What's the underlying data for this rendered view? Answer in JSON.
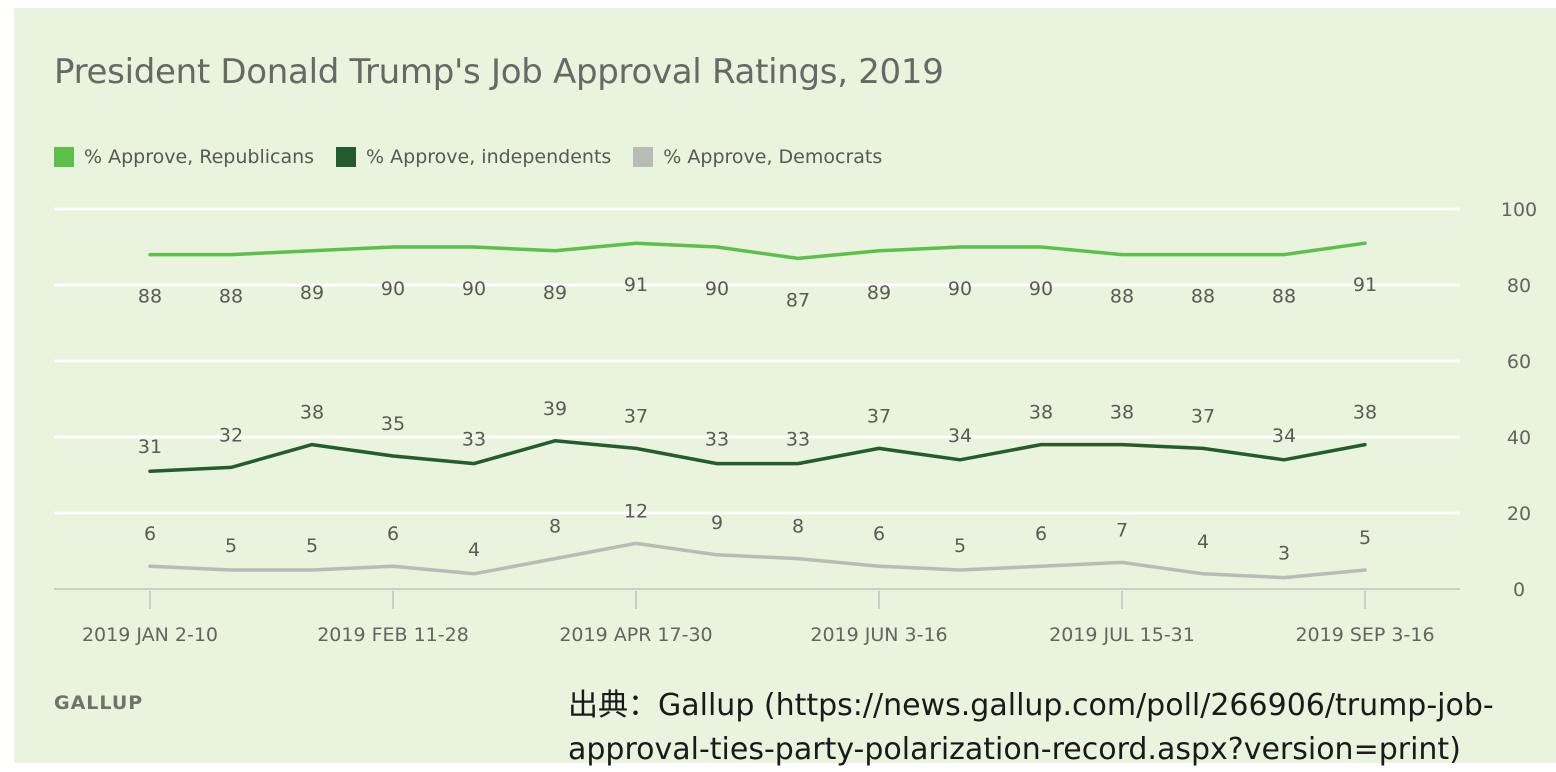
{
  "title": "President Donald Trump's Job Approval Ratings, 2019",
  "brand": "GALLUP",
  "source_line1": "出典：Gallup (https://news.gallup.com/poll/266906/trump-job-",
  "source_line2": "approval-ties-party-polarization-record.aspx?version=print)",
  "chart_data": {
    "type": "line",
    "title": "President Donald Trump's Job Approval Ratings, 2019",
    "xlabel": "",
    "ylabel": "",
    "ylim": [
      0,
      100
    ],
    "yticks": [
      0,
      20,
      40,
      60,
      80,
      100
    ],
    "y_axis_position": "right",
    "grid": true,
    "legend_position": "top-left",
    "x_tick_labels": [
      "2019 JAN 2-10",
      "2019 FEB 11-28",
      "2019 APR 17-30",
      "2019 JUN 3-16",
      "2019 JUL 15-31",
      "2019 SEP 3-16"
    ],
    "x_tick_indices": [
      0,
      3,
      6,
      9,
      12,
      15
    ],
    "point_count": 16,
    "series": [
      {
        "name": "% Approve, Republicans",
        "color": "#5cc04a",
        "values": [
          88,
          88,
          89,
          90,
          90,
          89,
          91,
          90,
          87,
          89,
          90,
          90,
          88,
          88,
          88,
          91
        ]
      },
      {
        "name": "% Approve, independents",
        "color": "#245c30",
        "values": [
          31,
          32,
          38,
          35,
          33,
          39,
          37,
          33,
          33,
          37,
          34,
          38,
          38,
          37,
          34,
          38
        ]
      },
      {
        "name": "% Approve, Democrats",
        "color": "#b9bbb7",
        "values": [
          6,
          5,
          5,
          6,
          4,
          8,
          12,
          9,
          8,
          6,
          5,
          6,
          7,
          4,
          3,
          5
        ]
      }
    ]
  }
}
